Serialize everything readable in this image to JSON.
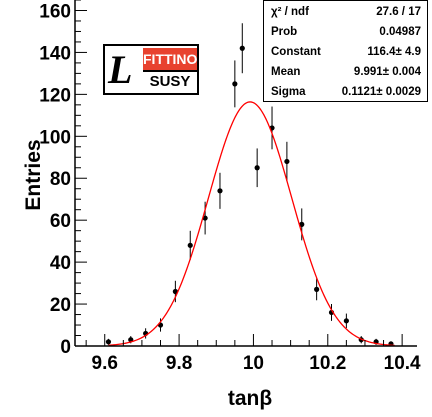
{
  "chart_data": {
    "type": "scatter",
    "xlabel": "tanβ",
    "ylabel": "Entries",
    "xlim": [
      9.52,
      10.44
    ],
    "ylim": [
      0,
      165
    ],
    "x_ticks": [
      "9.6",
      "9.8",
      "10",
      "10.2",
      "10.4"
    ],
    "y_ticks": [
      "0",
      "20",
      "40",
      "60",
      "80",
      "100",
      "120",
      "140",
      "160"
    ],
    "grid": false,
    "series": [
      {
        "type": "points_with_errors",
        "x": [
          9.61,
          9.67,
          9.71,
          9.75,
          9.79,
          9.83,
          9.87,
          9.91,
          9.95,
          9.97,
          10.01,
          10.05,
          10.09,
          10.13,
          10.17,
          10.21,
          10.25,
          10.29,
          10.33,
          10.37
        ],
        "y": [
          2,
          3,
          6,
          10,
          26,
          48,
          61,
          74,
          125,
          142,
          85,
          104,
          88,
          58,
          27,
          16,
          12,
          3,
          2,
          1
        ]
      },
      {
        "type": "gaussian_fit",
        "constant": 116.4,
        "mean": 9.991,
        "sigma": 0.1121
      }
    ],
    "stats": [
      {
        "label": "χ² / ndf",
        "value": "27.6 / 17"
      },
      {
        "label": "Prob",
        "value": "0.04987"
      },
      {
        "label": "Constant",
        "value": "116.4± 4.9"
      },
      {
        "label": "Mean",
        "value": "9.991± 0.004"
      },
      {
        "label": "Sigma",
        "value": "0.1121± 0.0029"
      }
    ],
    "colors": {
      "points": "#000000",
      "fit": "#ff0000"
    }
  },
  "logo": {
    "top_text": "FITTINO",
    "bottom_text": "SUSY",
    "letter": "L"
  }
}
